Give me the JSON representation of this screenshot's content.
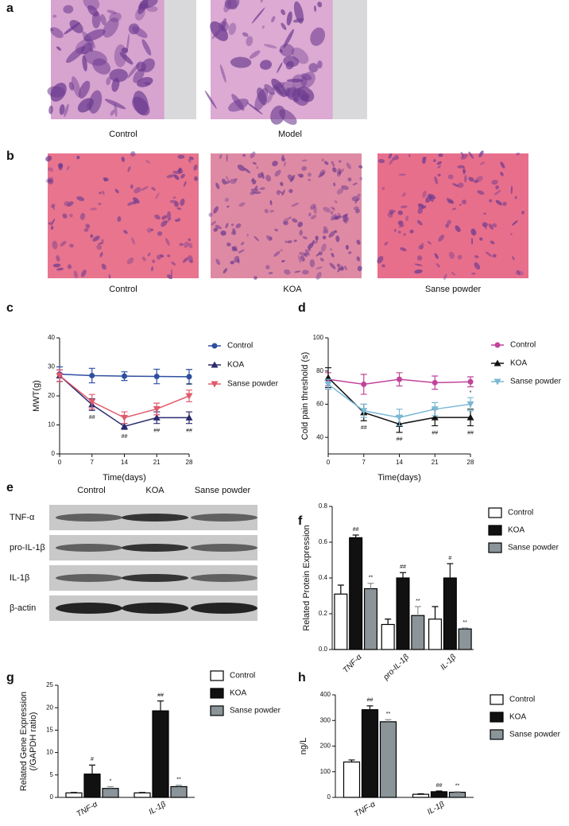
{
  "figure": {
    "panel_a": {
      "label": "a",
      "captions": [
        "Control",
        "Model"
      ]
    },
    "panel_b": {
      "label": "b",
      "captions": [
        "Control",
        "KOA",
        "Sanse powder"
      ]
    },
    "panel_e": {
      "label": "e",
      "columns": [
        "Control",
        "KOA",
        "Sanse powder"
      ],
      "rows": [
        "TNF-α",
        "pro-IL-1β",
        "IL-1β",
        "β-actin"
      ]
    }
  },
  "chart_data": [
    {
      "type": "line",
      "panel": "c",
      "ylabel": "MWT(g)",
      "xlabel": "Time(days)",
      "x": [
        0,
        7,
        14,
        21,
        28
      ],
      "xlim": [
        0,
        28
      ],
      "xticks": [
        0,
        7,
        14,
        21,
        28
      ],
      "ylim": [
        0,
        40
      ],
      "yticks": [
        0,
        10,
        20,
        30,
        40
      ],
      "series": [
        {
          "name": "Control",
          "color": "#2e4fa0",
          "marker": "circle",
          "values": [
            27.5,
            27,
            26.8,
            26.7,
            26.6
          ],
          "errors": [
            2.5,
            2.5,
            1.5,
            2.5,
            2.5
          ]
        },
        {
          "name": "KOA",
          "color": "#2b2a6e",
          "marker": "triangle-up",
          "values": [
            27,
            17,
            9.5,
            12.5,
            12.5
          ],
          "errors": [
            2,
            2,
            1,
            2,
            2
          ],
          "annotations": [
            null,
            "##",
            "##",
            "##",
            "##"
          ],
          "annotation_position": "below"
        },
        {
          "name": "Sanse powder",
          "color": "#e05a6b",
          "marker": "triangle-down",
          "values": [
            27,
            18,
            12.5,
            15.5,
            20
          ],
          "errors": [
            2,
            2.5,
            2,
            2,
            2
          ],
          "annotations": [
            null,
            null,
            null,
            null,
            "**"
          ],
          "annotation_position": "above"
        }
      ]
    },
    {
      "type": "line",
      "panel": "d",
      "ylabel": "Cold pain threshold (s)",
      "xlabel": "Time(days)",
      "x": [
        0,
        7,
        14,
        21,
        28
      ],
      "xlim": [
        0,
        28
      ],
      "xticks": [
        0,
        7,
        14,
        21,
        28
      ],
      "ylim": [
        30,
        100
      ],
      "yticks": [
        40,
        60,
        80,
        100
      ],
      "series": [
        {
          "name": "Control",
          "color": "#c2449a",
          "marker": "circle",
          "values": [
            75,
            72,
            75,
            73,
            73.5
          ],
          "errors": [
            4,
            6,
            4,
            4,
            3
          ]
        },
        {
          "name": "KOA",
          "color": "#111111",
          "marker": "triangle-up",
          "values": [
            76,
            55,
            48,
            52,
            52
          ],
          "errors": [
            6,
            5,
            5,
            5,
            5
          ],
          "annotations": [
            null,
            "##",
            "##",
            "##",
            "##"
          ],
          "annotation_position": "below"
        },
        {
          "name": "Sanse powder",
          "color": "#7ab8d6",
          "marker": "triangle-down",
          "values": [
            72,
            56,
            52,
            57,
            60
          ],
          "errors": [
            3,
            4,
            5,
            4,
            4
          ],
          "annotations": [
            null,
            null,
            null,
            null,
            "*"
          ],
          "annotation_position": "above"
        }
      ]
    },
    {
      "type": "bar",
      "panel": "f",
      "ylabel": "Related  Protein Expression",
      "categories": [
        "TNF-α",
        "pro-IL-1β",
        "IL-1β"
      ],
      "xtick_rotation": 45,
      "ylim": [
        0,
        0.8
      ],
      "yticks": [
        {
          "value": 0,
          "label": "0.0"
        },
        0.2,
        0.4,
        0.6,
        0.8
      ],
      "edgecolor": "#000000",
      "series": [
        {
          "name": "Control",
          "color": "#ffffff",
          "values": [
            0.31,
            0.14,
            0.17
          ],
          "errors": [
            0.05,
            0.03,
            0.07
          ]
        },
        {
          "name": "KOA",
          "color": "#111111",
          "values": [
            0.625,
            0.4,
            0.4
          ],
          "errors": [
            0.015,
            0.03,
            0.08
          ],
          "annotations": [
            "##",
            "##",
            "#"
          ]
        },
        {
          "name": "Sanse powder",
          "color": "#8a9499",
          "values": [
            0.34,
            0.19,
            0.115
          ],
          "errors": [
            0.03,
            0.05,
            0.005
          ],
          "annotations": [
            "**",
            "**",
            "**"
          ]
        }
      ]
    },
    {
      "type": "bar",
      "panel": "g",
      "ylabel": [
        "Related Gene Expression",
        "(/GAPDH ratio)"
      ],
      "categories": [
        "TNF-α",
        "IL-1β"
      ],
      "xtick_rotation": 30,
      "ylim": [
        0,
        25
      ],
      "yticks": [
        0,
        5,
        10,
        15,
        20,
        25
      ],
      "edgecolor": "#000000",
      "series": [
        {
          "name": "Control",
          "color": "#ffffff",
          "values": [
            1,
            1
          ],
          "errors": [
            0.1,
            0.1
          ]
        },
        {
          "name": "KOA",
          "color": "#111111",
          "values": [
            5.2,
            19.3
          ],
          "errors": [
            2,
            2.2
          ],
          "annotations": [
            "#",
            "##"
          ]
        },
        {
          "name": "Sanse powder",
          "color": "#8a9499",
          "values": [
            2,
            2.4
          ],
          "errors": [
            0.4,
            0.3
          ],
          "annotations": [
            "*",
            "**"
          ]
        }
      ]
    },
    {
      "type": "bar",
      "panel": "h",
      "ylabel": "ng/L",
      "categories": [
        "TNF-α",
        "IL-1β"
      ],
      "xtick_rotation": 30,
      "ylim": [
        0,
        400
      ],
      "yticks": [
        0,
        100,
        200,
        300,
        400
      ],
      "edgecolor": "#000000",
      "series": [
        {
          "name": "Control",
          "color": "#ffffff",
          "values": [
            138,
            12
          ],
          "errors": [
            8,
            2
          ]
        },
        {
          "name": "KOA",
          "color": "#111111",
          "values": [
            342,
            22
          ],
          "errors": [
            15,
            3
          ],
          "annotations": [
            "##",
            "##"
          ]
        },
        {
          "name": "Sanse powder",
          "color": "#8a9499",
          "values": [
            295,
            20
          ],
          "errors": [
            8,
            2
          ],
          "annotations": [
            "**",
            "**"
          ]
        }
      ]
    }
  ]
}
